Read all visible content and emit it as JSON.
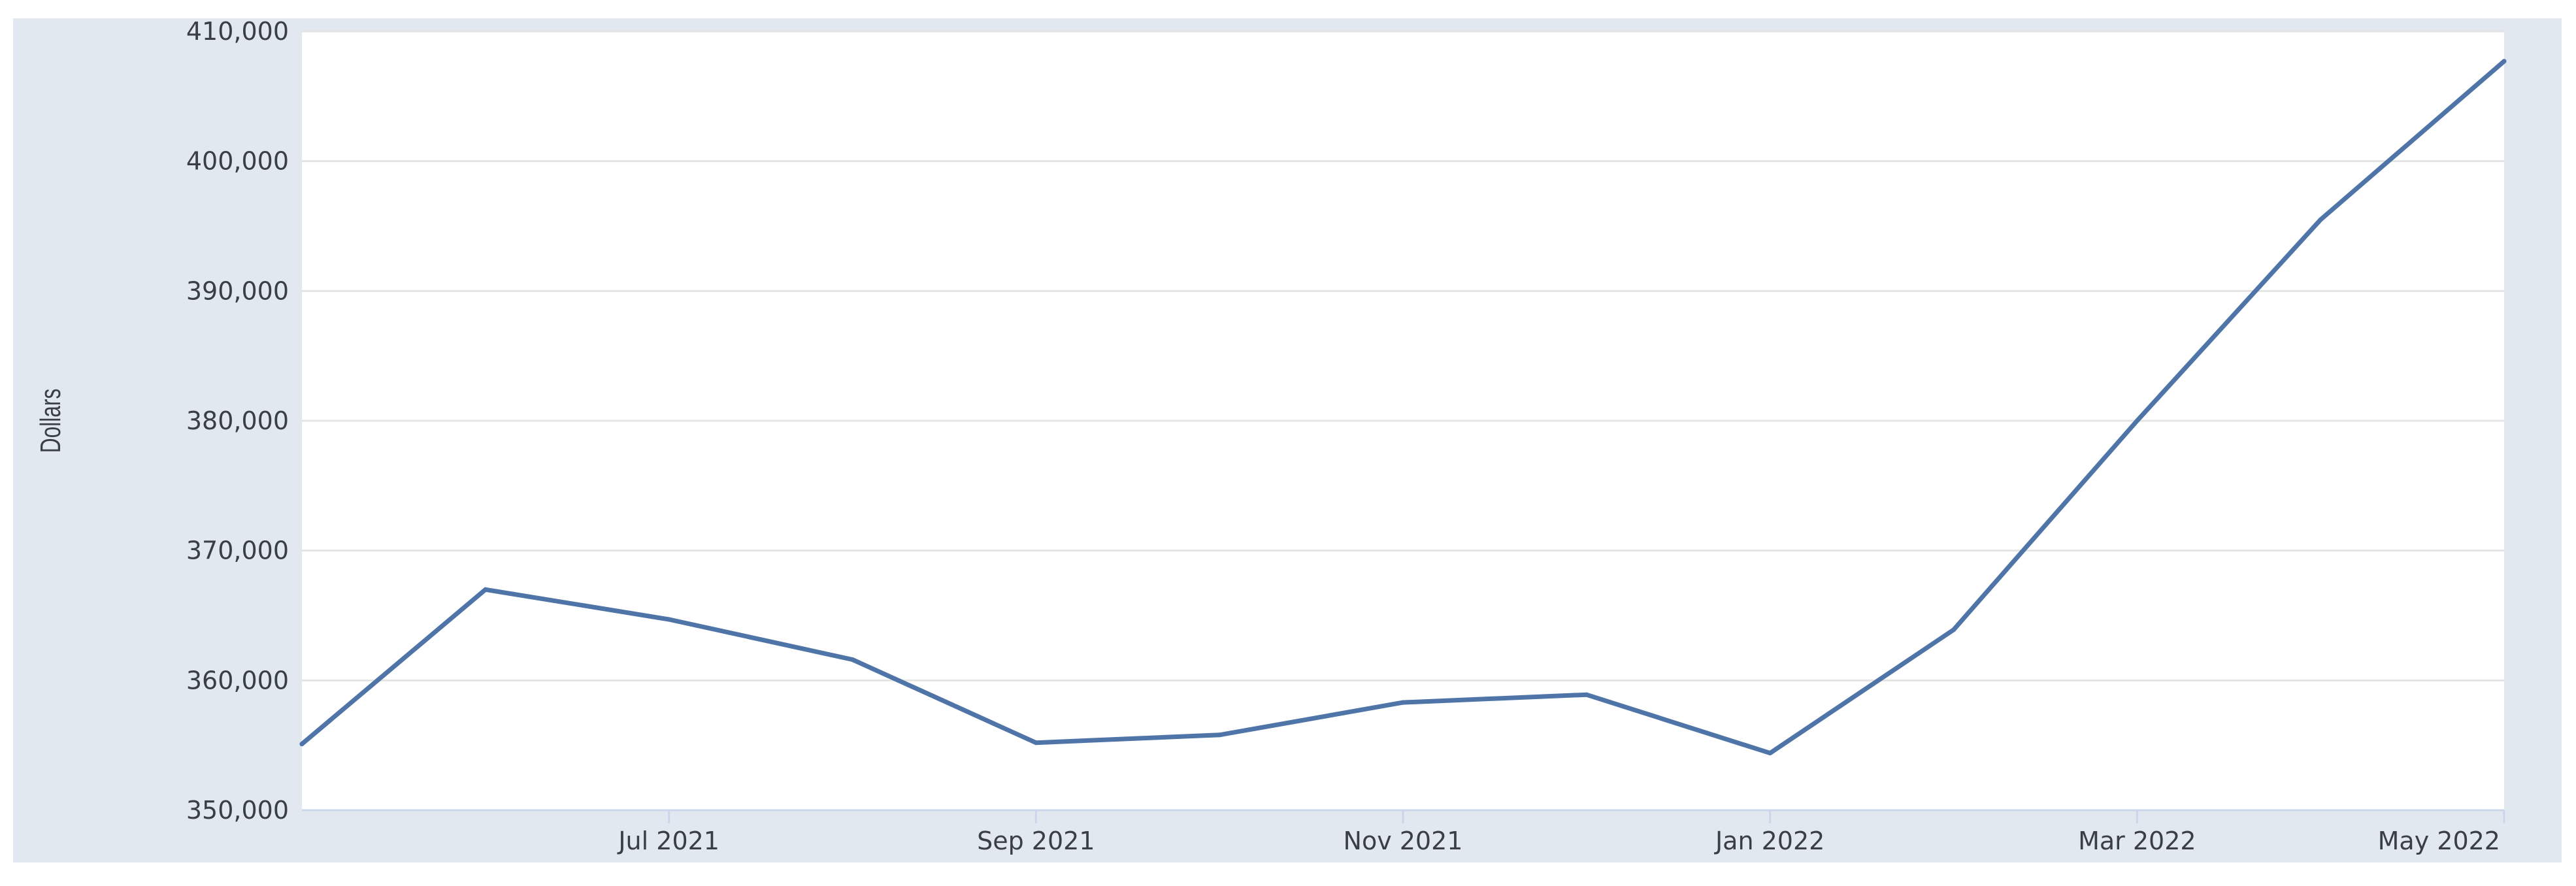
{
  "chart_data": {
    "type": "line",
    "title": "",
    "xlabel": "",
    "ylabel": "Dollars",
    "x": [
      "2021-05",
      "2021-06",
      "2021-07",
      "2021-08",
      "2021-09",
      "2021-10",
      "2021-11",
      "2021-12",
      "2022-01",
      "2022-02",
      "2022-03",
      "2022-04",
      "2022-05"
    ],
    "series": [
      {
        "values": [
          355100,
          367000,
          364700,
          361600,
          355200,
          355800,
          358300,
          358900,
          354400,
          363900,
          380000,
          395500,
          407700
        ],
        "color": "#4e74a8"
      }
    ],
    "ylim": [
      350000,
      410000
    ],
    "yticks": [
      350000,
      360000,
      370000,
      380000,
      390000,
      400000,
      410000
    ],
    "ytick_labels": [
      "350,000",
      "360,000",
      "370,000",
      "380,000",
      "390,000",
      "400,000",
      "410,000"
    ],
    "xticks": [
      "2021-07",
      "2021-09",
      "2021-11",
      "2022-01",
      "2022-03",
      "2022-05"
    ],
    "xtick_labels": [
      "Jul 2021",
      "Sep 2021",
      "Nov 2021",
      "Jan 2022",
      "Mar 2022",
      "May 2022"
    ],
    "grid": true,
    "legend": "none",
    "colors": {
      "frame_background": "#e1e8ef",
      "plot_background": "#ffffff",
      "gridline": "#e4e4e4",
      "axis_line": "#ccd6eb",
      "line": "#4e74a8",
      "text": "#3a3f45"
    }
  }
}
